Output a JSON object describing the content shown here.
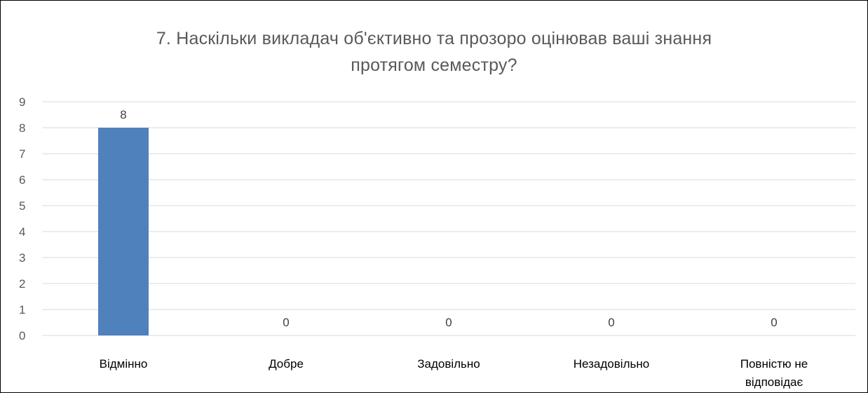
{
  "chart_data": {
    "type": "bar",
    "title_lines": [
      "7. Наскільки викладач об'єктивно та прозоро оцінював ваші знання",
      "протягом семестру?"
    ],
    "categories": [
      "Відмінно",
      "Добре",
      "Задовільно",
      "Незадовільно",
      "Повністю не відповідає"
    ],
    "category_label_lines": [
      [
        "Відмінно"
      ],
      [
        "Добре"
      ],
      [
        "Задовільно"
      ],
      [
        "Незадовільно"
      ],
      [
        "Повністю не",
        "відповідає"
      ]
    ],
    "values": [
      8,
      0,
      0,
      0,
      0
    ],
    "data_labels": [
      "8",
      "0",
      "0",
      "0",
      "0"
    ],
    "y_ticks": [
      0,
      1,
      2,
      3,
      4,
      5,
      6,
      7,
      8,
      9
    ],
    "ylim": [
      0,
      9
    ],
    "grid": true,
    "legend": "none",
    "bar_color": "#4F81BD",
    "grid_color": "#D9D9D9"
  }
}
